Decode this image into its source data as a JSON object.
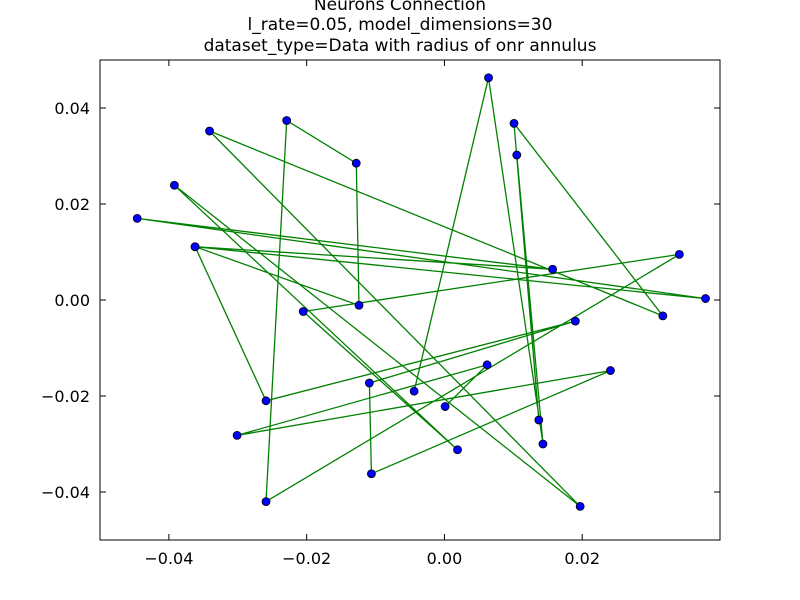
{
  "chart_data": {
    "type": "line",
    "title_lines": [
      "Neurons Connection",
      "l_rate=0.05, model_dimensions=30",
      "dataset_type=Data with radius of onr annulus"
    ],
    "xlabel": "",
    "ylabel": "",
    "xlim": [
      -0.05,
      0.04
    ],
    "ylim": [
      -0.05,
      0.05
    ],
    "xticks": [
      -0.04,
      -0.02,
      0.0,
      0.02
    ],
    "xtick_labels": [
      "−0.04",
      "−0.02",
      "0.00",
      "0.02"
    ],
    "yticks": [
      -0.04,
      -0.02,
      0.0,
      0.02,
      0.04
    ],
    "ytick_labels": [
      "−0.04",
      "−0.02",
      "0.00",
      "0.02",
      "0.04"
    ],
    "grid": false,
    "line_color": "#008000",
    "marker_color": "#0000ff",
    "marker_edge_color": "#000000",
    "series": [
      {
        "x": [
          -0.0044,
          0.0064,
          0.0143,
          0.0105,
          0.0137,
          0.0101,
          0.0317,
          -0.0341,
          0.0197,
          -0.0392,
          0.0019,
          -0.0205,
          0.0341,
          -0.0259,
          -0.0229,
          -0.0128,
          -0.0124,
          -0.0362,
          0.0379,
          -0.0446,
          0.0157,
          -0.0362,
          -0.0259,
          0.019,
          -0.0109,
          -0.0106,
          0.0241,
          -0.0301,
          0.0062,
          0.0001
        ],
        "y": [
          -0.019,
          0.0463,
          -0.03,
          0.0302,
          -0.025,
          0.0368,
          -0.0033,
          0.0352,
          -0.043,
          0.0239,
          -0.0312,
          -0.0024,
          0.0095,
          -0.042,
          0.0374,
          0.0285,
          -0.0011,
          0.0111,
          0.0003,
          0.017,
          0.0064,
          0.0111,
          -0.021,
          -0.0044,
          -0.0173,
          -0.0362,
          -0.0147,
          -0.0282,
          -0.0135,
          -0.0222
        ]
      }
    ]
  }
}
